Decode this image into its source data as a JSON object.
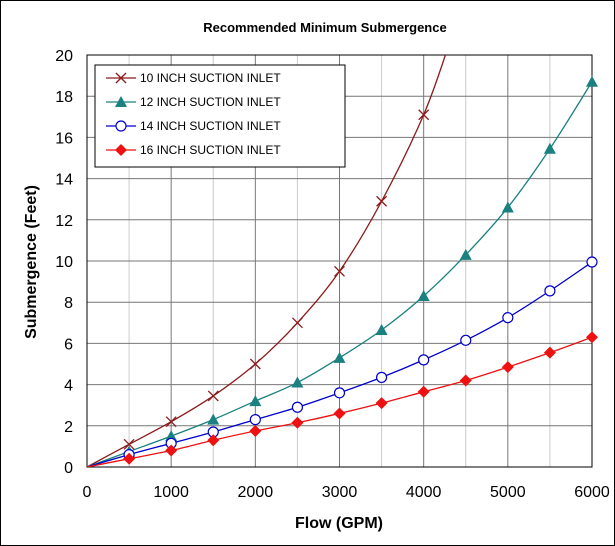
{
  "chart_data": {
    "type": "line",
    "title": "Recommended Minimum Submergence",
    "xlabel": "Flow (GPM)",
    "ylabel": "Submergence (Feet)",
    "xlim": [
      0,
      6000
    ],
    "ylim": [
      0,
      20
    ],
    "xticks": [
      "0",
      "1000",
      "2000",
      "3000",
      "4000",
      "5000",
      "6000"
    ],
    "yticks": [
      "0",
      "2",
      "4",
      "6",
      "8",
      "10",
      "12",
      "14",
      "16",
      "18",
      "20"
    ],
    "grid": true,
    "legend_position": "top-left",
    "series": [
      {
        "name": "10 INCH SUCTION INLET",
        "color": "#8B1A1A",
        "marker": "x",
        "x": [
          0,
          500,
          1000,
          1500,
          2000,
          2500,
          3000,
          3500,
          4000,
          4300
        ],
        "y": [
          0,
          1.1,
          2.2,
          3.45,
          5.0,
          7.0,
          9.5,
          12.9,
          17.1,
          20.5
        ],
        "marker_count": 8
      },
      {
        "name": "12 INCH SUCTION INLET",
        "color": "#1A8080",
        "marker": "triangle",
        "x": [
          0,
          500,
          1000,
          1500,
          2000,
          2500,
          3000,
          3500,
          4000,
          4500,
          5000,
          5500,
          6000
        ],
        "y": [
          0,
          0.75,
          1.5,
          2.3,
          3.2,
          4.1,
          5.3,
          6.65,
          8.3,
          10.3,
          12.6,
          15.45,
          18.7
        ],
        "marker_count": 12
      },
      {
        "name": "14 INCH SUCTION INLET",
        "color": "#0000CC",
        "marker": "circle",
        "x": [
          0,
          500,
          1000,
          1500,
          2000,
          2500,
          3000,
          3500,
          4000,
          4500,
          5000,
          5500,
          6000
        ],
        "y": [
          0,
          0.6,
          1.15,
          1.7,
          2.3,
          2.9,
          3.6,
          4.35,
          5.2,
          6.15,
          7.25,
          8.55,
          9.95
        ],
        "marker_count": 12
      },
      {
        "name": "16 INCH SUCTION INLET",
        "color": "#EE1111",
        "marker": "diamond",
        "x": [
          0,
          500,
          1000,
          1500,
          2000,
          2500,
          3000,
          3500,
          4000,
          4500,
          5000,
          5500,
          6000
        ],
        "y": [
          0,
          0.4,
          0.8,
          1.3,
          1.75,
          2.15,
          2.6,
          3.1,
          3.65,
          4.2,
          4.85,
          5.55,
          6.3
        ],
        "marker_count": 12
      }
    ]
  }
}
